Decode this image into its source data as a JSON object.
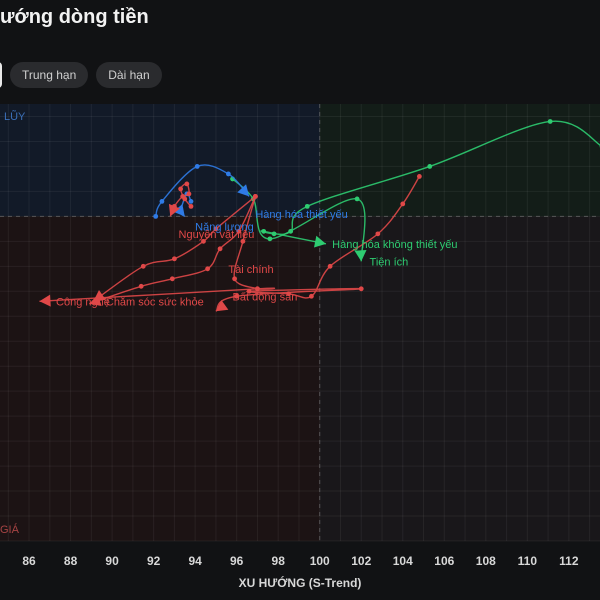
{
  "header": {
    "title": "ướng dòng tiền",
    "tabs": [
      {
        "label": "",
        "active": true
      },
      {
        "label": "Trung hạn",
        "active": false
      },
      {
        "label": "Dài hạn",
        "active": false
      }
    ]
  },
  "chart_data": {
    "type": "scatter",
    "title": "",
    "xlabel": "XU HƯỚNG (S-Trend)",
    "ylabel": "",
    "xlim": [
      84.6,
      113.5
    ],
    "ylim": [
      87,
      104.5
    ],
    "quadrant_x": 100,
    "quadrant_y": 100,
    "quadrant_labels": {
      "top_left": "LŨY",
      "bottom_left": "GIÁ"
    },
    "x_ticks": [
      "86",
      "88",
      "90",
      "92",
      "94",
      "96",
      "98",
      "100",
      "102",
      "104",
      "106",
      "108",
      "110",
      "112"
    ],
    "x_tick_values": [
      86,
      88,
      90,
      92,
      94,
      96,
      98,
      100,
      102,
      104,
      106,
      108,
      110,
      112
    ],
    "grid": true,
    "colors": {
      "green": "#2ecc71",
      "blue": "#2f7be6",
      "red": "#e04848",
      "quad_tl": "#121a28",
      "quad_tr": "#131d18",
      "quad_bl": "#1c1314",
      "quad_br": "#19171a"
    },
    "series": [
      {
        "name": "Hàng hóa không thiết yếu",
        "color": "green",
        "points": [
          [
            113.6,
            102.8
          ],
          [
            111.1,
            103.8
          ],
          [
            105.3,
            102.0
          ],
          [
            99.4,
            100.4
          ],
          [
            98.6,
            99.4
          ],
          [
            97.8,
            99.3
          ],
          [
            97.3,
            99.4
          ],
          [
            100.3,
            98.9
          ]
        ]
      },
      {
        "name": "Tiện ích",
        "color": "green",
        "points": [
          [
            95.8,
            101.5
          ],
          [
            96.8,
            100.7
          ],
          [
            97.6,
            99.1
          ],
          [
            101.8,
            100.7
          ],
          [
            102.0,
            98.2
          ]
        ]
      },
      {
        "name": "Hàng hóa thiết yếu",
        "color": "blue",
        "points": [
          [
            92.1,
            100.0
          ],
          [
            92.4,
            100.6
          ],
          [
            94.1,
            102.0
          ],
          [
            95.6,
            101.7
          ],
          [
            96.6,
            100.8
          ]
        ]
      },
      {
        "name": "Năng lượng",
        "color": "blue",
        "points": [
          [
            93.8,
            100.6
          ],
          [
            93.6,
            100.9
          ],
          [
            93.3,
            100.2
          ],
          [
            93.5,
            100.0
          ]
        ]
      },
      {
        "name": "Nguyên vật liệu",
        "color": "red",
        "points": [
          [
            93.8,
            100.4
          ],
          [
            93.5,
            100.7
          ],
          [
            93.3,
            101.1
          ],
          [
            93.6,
            101.3
          ],
          [
            93.7,
            100.9
          ],
          [
            93.4,
            100.8
          ],
          [
            93.0,
            100.4
          ],
          [
            92.8,
            100.0
          ]
        ]
      },
      {
        "name": "Tài chính",
        "color": "red",
        "points": [
          [
            96.9,
            100.8
          ],
          [
            95.0,
            99.5
          ],
          [
            94.4,
            99.0
          ],
          [
            93.0,
            98.3
          ],
          [
            91.5,
            98.0
          ],
          [
            89.1,
            96.6
          ]
        ]
      },
      {
        "name": "Chăm sóc sức khỏe",
        "color": "red",
        "points": [
          [
            96.9,
            100.8
          ],
          [
            96.1,
            99.4
          ],
          [
            95.2,
            98.7
          ],
          [
            94.6,
            97.9
          ],
          [
            92.9,
            97.5
          ],
          [
            91.4,
            97.2
          ],
          [
            88.9,
            96.5
          ]
        ]
      },
      {
        "name": "Công nghệ",
        "color": "red",
        "points": [
          [
            96.9,
            100.8
          ],
          [
            96.3,
            99.0
          ],
          [
            95.9,
            97.5
          ],
          [
            97.0,
            97.1
          ],
          [
            97.0,
            97.1
          ],
          [
            86.5,
            96.6
          ]
        ]
      },
      {
        "name": "Bất động sản",
        "color": "red",
        "points": [
          [
            104.8,
            101.6
          ],
          [
            104.0,
            100.5
          ],
          [
            102.8,
            99.3
          ],
          [
            100.5,
            98.0
          ],
          [
            99.6,
            96.8
          ],
          [
            98.5,
            96.9
          ],
          [
            96.6,
            97.0
          ],
          [
            102.0,
            97.1
          ],
          [
            96.0,
            96.8
          ],
          [
            95.0,
            96.2
          ]
        ]
      }
    ],
    "labels": [
      {
        "text": "Hàng hóa không thiết yếu",
        "x": 100.6,
        "y": 98.9,
        "color": "green"
      },
      {
        "text": "Tiện ích",
        "x": 102.4,
        "y": 98.2,
        "color": "green"
      },
      {
        "text": "Hàng hóa thiết yếu",
        "x": 96.9,
        "y": 100.1,
        "color": "blue"
      },
      {
        "text": "Năng lượng",
        "x": 94.0,
        "y": 99.6,
        "color": "blue"
      },
      {
        "text": "Nguyên vật liệu",
        "x": 93.2,
        "y": 99.3,
        "color": "red"
      },
      {
        "text": "Tài chính",
        "x": 95.6,
        "y": 97.9,
        "color": "red"
      },
      {
        "text": "Chăm sóc sức khỏe",
        "x": 89.7,
        "y": 96.6,
        "color": "red"
      },
      {
        "text": "Công nghệ",
        "x": 87.3,
        "y": 96.6,
        "color": "red"
      },
      {
        "text": "Bất động sản",
        "x": 95.8,
        "y": 96.8,
        "color": "red"
      }
    ]
  }
}
